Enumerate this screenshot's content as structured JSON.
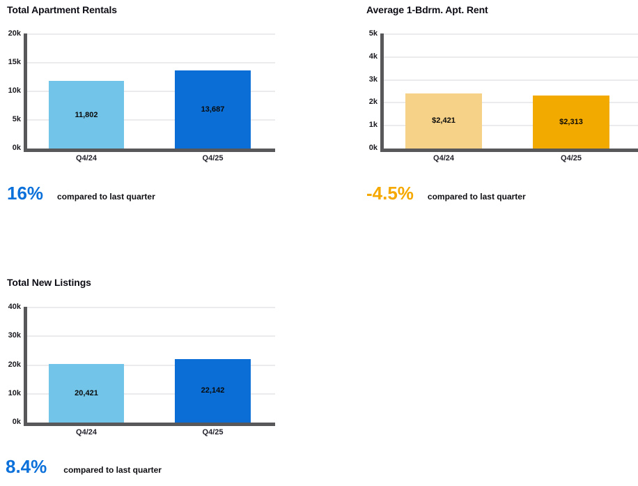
{
  "page": {
    "background": "#ffffff",
    "axis_color": "#58585a",
    "gridline_color": "#ebebed"
  },
  "chart_data": [
    {
      "type": "bar",
      "title": "Total Apartment Rentals",
      "categories": [
        "Q4/24",
        "Q4/25"
      ],
      "values": [
        11802,
        13687
      ],
      "bar_labels": [
        "11,802",
        "13,687"
      ],
      "bar_colors": [
        "#72c4e8",
        "#0a6ed6"
      ],
      "ylim": [
        0,
        20000
      ],
      "y_ticks": [
        {
          "label": "0k",
          "value": 0
        },
        {
          "label": "5k",
          "value": 5000
        },
        {
          "label": "10k",
          "value": 10000
        },
        {
          "label": "15k",
          "value": 15000
        },
        {
          "label": "20k",
          "value": 20000
        }
      ],
      "grid": true,
      "legend": "none",
      "annotation": {
        "value": "16%",
        "caption": "compared to last quarter",
        "color": "#0b70da"
      }
    },
    {
      "type": "bar",
      "title": "Average 1-Bdrm. Apt. Rent",
      "categories": [
        "Q4/24",
        "Q4/25"
      ],
      "values": [
        2421,
        2313
      ],
      "bar_labels": [
        "$2,421",
        "$2,313"
      ],
      "bar_colors": [
        "#f6d288",
        "#f2a900"
      ],
      "ylim": [
        0,
        5000
      ],
      "y_ticks": [
        {
          "label": "0k",
          "value": 0
        },
        {
          "label": "1k",
          "value": 1000
        },
        {
          "label": "2k",
          "value": 2000
        },
        {
          "label": "3k",
          "value": 3000
        },
        {
          "label": "4k",
          "value": 4000
        },
        {
          "label": "5k",
          "value": 5000
        }
      ],
      "grid": true,
      "legend": "none",
      "annotation": {
        "value": "-4.5%",
        "caption": "compared to last quarter",
        "color": "#f5a800"
      }
    },
    {
      "type": "bar",
      "title": "Total New Listings",
      "categories": [
        "Q4/24",
        "Q4/25"
      ],
      "values": [
        20421,
        22142
      ],
      "bar_labels": [
        "20,421",
        "22,142"
      ],
      "bar_colors": [
        "#72c4e8",
        "#0a6ed6"
      ],
      "ylim": [
        0,
        40000
      ],
      "y_ticks": [
        {
          "label": "0k",
          "value": 0
        },
        {
          "label": "10k",
          "value": 10000
        },
        {
          "label": "20k",
          "value": 20000
        },
        {
          "label": "30k",
          "value": 30000
        },
        {
          "label": "40k",
          "value": 40000
        }
      ],
      "grid": true,
      "legend": "none",
      "annotation": {
        "value": "8.4%",
        "caption": "compared to last quarter",
        "color": "#0b70da"
      }
    }
  ]
}
